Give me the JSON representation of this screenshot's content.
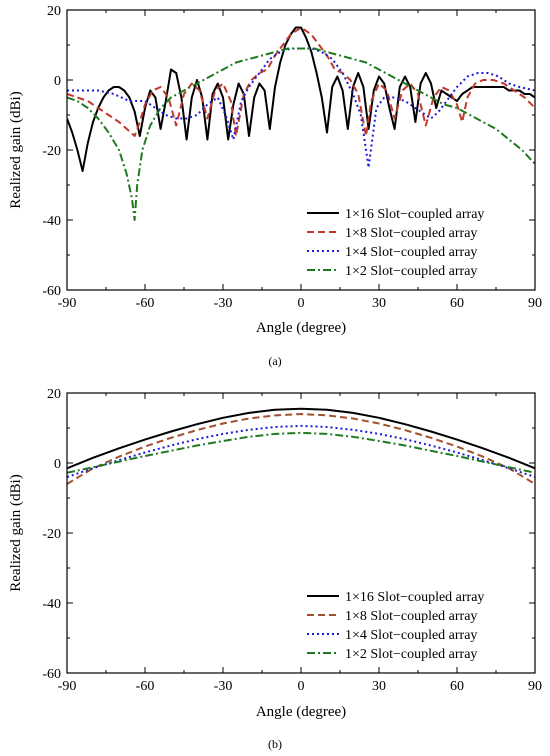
{
  "chart_data": [
    {
      "type": "line",
      "caption": "(a)",
      "xlabel": "Angle (degree)",
      "ylabel": "Realized gain (dBi)",
      "xlim": [
        -90,
        90
      ],
      "ylim": [
        -60,
        20
      ],
      "xticks": [
        -90,
        -60,
        -30,
        0,
        30,
        60,
        90
      ],
      "yticks": [
        -60,
        -40,
        -20,
        0,
        20
      ],
      "grid": false,
      "legend_position": "bottom-right",
      "series": [
        {
          "name": "1×16 Slot−coupled array",
          "color": "#000000",
          "style": "solid",
          "x": [
            -90,
            -88,
            -86,
            -84,
            -82,
            -80,
            -78,
            -76,
            -74,
            -72,
            -70,
            -68,
            -66,
            -64,
            -62,
            -60,
            -58,
            -56,
            -54,
            -52,
            -50,
            -48,
            -46,
            -44,
            -42,
            -40,
            -38,
            -36,
            -34,
            -32,
            -30,
            -28,
            -26,
            -24,
            -22,
            -20,
            -18,
            -16,
            -14,
            -12,
            -10,
            -8,
            -6,
            -4,
            -2,
            0,
            2,
            4,
            6,
            8,
            10,
            12,
            14,
            16,
            18,
            20,
            22,
            24,
            26,
            28,
            30,
            32,
            34,
            36,
            38,
            40,
            42,
            44,
            46,
            48,
            50,
            52,
            54,
            56,
            58,
            60,
            62,
            64,
            66,
            68,
            70,
            72,
            74,
            76,
            78,
            80,
            82,
            84,
            86,
            88,
            90
          ],
          "y": [
            -11,
            -15,
            -20,
            -26,
            -18,
            -12,
            -8,
            -5,
            -3,
            -2,
            -2,
            -3,
            -5,
            -9,
            -16,
            -8,
            -3,
            -5,
            -14,
            -6,
            3,
            2,
            -5,
            -17,
            -5,
            0,
            -5,
            -17,
            -4,
            -1,
            -5,
            -17,
            -7,
            -1,
            -4,
            -16,
            -5,
            -1,
            -3,
            -14,
            -2,
            5,
            10,
            13,
            15,
            15,
            12,
            8,
            2,
            -5,
            -15,
            -2,
            1,
            -3,
            -14,
            -2,
            2,
            -2,
            -14,
            -3,
            1,
            -1,
            -8,
            -14,
            -2,
            1,
            -2,
            -12,
            -1,
            2,
            -1,
            -8,
            -3,
            -4,
            -5,
            -6,
            -4,
            -3,
            -2,
            -2,
            -2,
            -2,
            -2,
            -2,
            -2,
            -3,
            -3,
            -3,
            -4,
            -4,
            -5
          ]
        },
        {
          "name": "1×8 Slot−coupled array",
          "color": "#c0392b",
          "style": "dashed",
          "x": [
            -90,
            -86,
            -82,
            -78,
            -74,
            -70,
            -67,
            -64,
            -62,
            -60,
            -57,
            -54,
            -51,
            -48,
            -45,
            -42,
            -39,
            -36,
            -33,
            -30,
            -27,
            -25,
            -22,
            -19,
            -16,
            -13,
            -10,
            -7,
            -4,
            0,
            4,
            7,
            10,
            13,
            16,
            19,
            22,
            25,
            27,
            30,
            33,
            36,
            39,
            42,
            45,
            48,
            51,
            54,
            57,
            60,
            62,
            64,
            67,
            70,
            74,
            78,
            82,
            86,
            90
          ],
          "y": [
            -4,
            -5,
            -6,
            -8,
            -10,
            -12,
            -14,
            -16,
            -12,
            -7,
            -3,
            -2,
            -5,
            -13,
            -4,
            -1,
            -3,
            -11,
            -3,
            -1,
            -6,
            -16,
            -4,
            0,
            2,
            3,
            7,
            10,
            13,
            15,
            13,
            10,
            7,
            3,
            2,
            0,
            -4,
            -16,
            -6,
            -1,
            -3,
            -11,
            -3,
            -1,
            -4,
            -13,
            -5,
            -2,
            -3,
            -7,
            -12,
            -5,
            -1,
            0,
            0,
            -1,
            -3,
            -5,
            -8
          ]
        },
        {
          "name": "1×4 Slot−coupled array",
          "color": "#1a1adc",
          "style": "dotted",
          "x": [
            -90,
            -84,
            -78,
            -72,
            -66,
            -60,
            -56,
            -52,
            -48,
            -44,
            -40,
            -36,
            -32,
            -29,
            -26,
            -23,
            -20,
            -16,
            -12,
            -8,
            -4,
            0,
            4,
            8,
            12,
            16,
            20,
            23,
            26,
            29,
            32,
            36,
            40,
            44,
            48,
            50,
            53,
            56,
            60,
            64,
            68,
            72,
            76,
            80,
            84,
            90
          ],
          "y": [
            -3,
            -3,
            -3,
            -4,
            -6,
            -6,
            -8,
            -10,
            -11,
            -11,
            -10,
            -7,
            -5,
            -10,
            -17,
            -6,
            -2,
            2,
            6,
            8,
            9,
            9,
            9,
            8,
            6,
            2,
            -4,
            -10,
            -25,
            -8,
            -5,
            -5,
            -6,
            -8,
            -10,
            -11,
            -9,
            -6,
            -2,
            1,
            2,
            2,
            1,
            -1,
            -2,
            -3
          ]
        },
        {
          "name": "1×2 Slot−coupled array",
          "color": "#1f7a1f",
          "style": "dashdot",
          "x": [
            -90,
            -86,
            -82,
            -78,
            -74,
            -70,
            -67,
            -65,
            -64,
            -63,
            -61,
            -58,
            -54,
            -50,
            -45,
            -40,
            -35,
            -30,
            -25,
            -20,
            -15,
            -10,
            -5,
            0,
            5,
            10,
            15,
            20,
            25,
            30,
            35,
            40,
            45,
            50,
            55,
            60,
            65,
            70,
            75,
            80,
            85,
            90
          ],
          "y": [
            -5,
            -6,
            -8,
            -11,
            -15,
            -20,
            -27,
            -34,
            -40,
            -30,
            -20,
            -13,
            -8,
            -5,
            -3,
            -1,
            1,
            3,
            5,
            6,
            7,
            8,
            9,
            9,
            9,
            8,
            7,
            6,
            5,
            3,
            1,
            -1,
            -3,
            -5,
            -7,
            -8,
            -10,
            -12,
            -14,
            -17,
            -20,
            -24
          ]
        }
      ]
    },
    {
      "type": "line",
      "caption": "(b)",
      "xlabel": "Angle (degree)",
      "ylabel": "Realized gain (dBi)",
      "xlim": [
        -90,
        90
      ],
      "ylim": [
        -60,
        20
      ],
      "xticks": [
        -90,
        -60,
        -30,
        0,
        30,
        60,
        90
      ],
      "yticks": [
        -60,
        -40,
        -20,
        0,
        20
      ],
      "grid": false,
      "legend_position": "bottom-right",
      "series": [
        {
          "name": "1×16 Slot−coupled array",
          "color": "#000000",
          "style": "solid",
          "x": [
            -90,
            -80,
            -70,
            -60,
            -50,
            -40,
            -30,
            -20,
            -10,
            0,
            10,
            20,
            30,
            40,
            50,
            60,
            70,
            80,
            90
          ],
          "y": [
            -1.5,
            1.5,
            4.2,
            6.7,
            9.0,
            11.1,
            12.9,
            14.3,
            15.2,
            15.5,
            15.2,
            14.3,
            12.9,
            11.1,
            9.0,
            6.7,
            4.2,
            1.5,
            -1.5
          ]
        },
        {
          "name": "1×8 Slot−coupled array",
          "color": "#a0522d",
          "style": "dashed",
          "x": [
            -90,
            -80,
            -70,
            -60,
            -50,
            -40,
            -30,
            -20,
            -10,
            0,
            10,
            20,
            30,
            40,
            50,
            60,
            70,
            80,
            90
          ],
          "y": [
            -6,
            -1.5,
            1.8,
            4.7,
            7.2,
            9.4,
            11.3,
            12.7,
            13.6,
            14,
            13.6,
            12.7,
            11.3,
            9.4,
            7.2,
            4.7,
            1.8,
            -1.5,
            -6
          ]
        },
        {
          "name": "1×4 Slot−coupled array",
          "color": "#1a1adc",
          "style": "dotted",
          "x": [
            -90,
            -80,
            -70,
            -60,
            -50,
            -40,
            -30,
            -20,
            -10,
            0,
            10,
            20,
            30,
            40,
            50,
            60,
            70,
            80,
            90
          ],
          "y": [
            -4,
            -1.5,
            0.8,
            3.0,
            5.0,
            6.8,
            8.3,
            9.5,
            10.3,
            10.6,
            10.3,
            9.5,
            8.3,
            6.8,
            5.0,
            3.0,
            0.8,
            -1.5,
            -4
          ]
        },
        {
          "name": "1×2 Slot−coupled array",
          "color": "#1f7a1f",
          "style": "dashdot",
          "x": [
            -90,
            -80,
            -70,
            -60,
            -50,
            -40,
            -30,
            -20,
            -10,
            0,
            10,
            20,
            30,
            40,
            50,
            60,
            70,
            80,
            90
          ],
          "y": [
            -2.8,
            -1.2,
            0.4,
            2.0,
            3.5,
            5.0,
            6.3,
            7.5,
            8.3,
            8.6,
            8.3,
            7.5,
            6.3,
            5.0,
            3.5,
            2.0,
            0.4,
            -1.2,
            -2.8
          ]
        }
      ]
    }
  ]
}
